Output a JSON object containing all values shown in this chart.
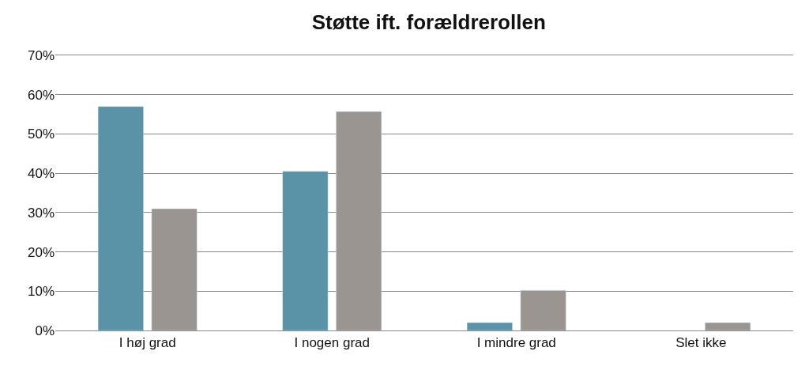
{
  "chart_data": {
    "type": "bar",
    "title": "Støtte ift. forældrerollen",
    "categories": [
      "I høj grad",
      "I nogen grad",
      "I mindre grad",
      "Slet ikke"
    ],
    "series": [
      {
        "color": "#5a93a8",
        "values": [
          57,
          40.5,
          2,
          null
        ]
      },
      {
        "color": "#9b9592",
        "values": [
          31,
          55.7,
          10.2,
          2
        ]
      }
    ],
    "ylim": [
      0,
      70
    ],
    "yticks": [
      {
        "value": 0,
        "label": "0%"
      },
      {
        "value": 10,
        "label": "10%"
      },
      {
        "value": 20,
        "label": "20%"
      },
      {
        "value": 30,
        "label": "30%"
      },
      {
        "value": 40,
        "label": "40%"
      },
      {
        "value": 50,
        "label": "50%"
      },
      {
        "value": 60,
        "label": "60%"
      },
      {
        "value": 70,
        "label": "70%"
      }
    ],
    "grid": "y"
  }
}
